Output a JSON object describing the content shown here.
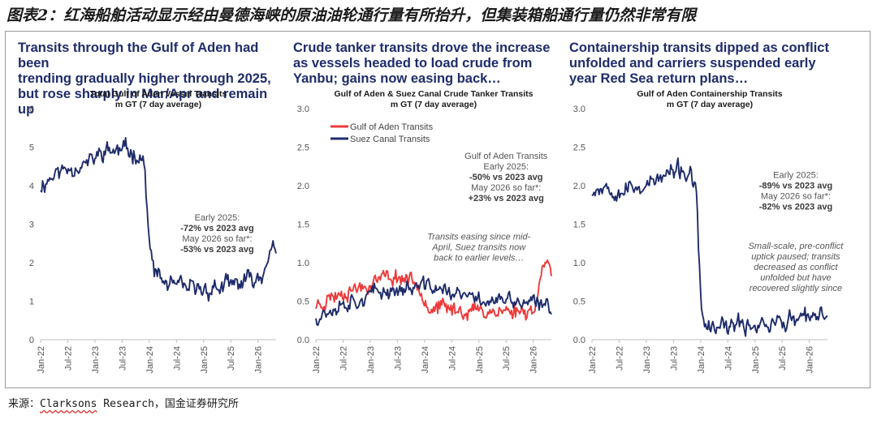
{
  "page": {
    "figure_title": "图表2：红海船舶活动显示经由曼德海峡的原油油轮通行量有所抬升，但集装箱船通行量仍然非常有限",
    "source_prefix": "来源：",
    "source_brand": "Clarksons",
    "source_rest": " Research，国金证券研究所"
  },
  "panels": [
    {
      "headline_lines": [
        "Transits through the Gulf of Aden had been",
        "trending gradually higher through 2025,",
        "but rose sharply in Mar/Apr and remain up"
      ]
    },
    {
      "headline_lines": [
        "Crude tanker transits drove the increase",
        "as vessels headed to load crude from",
        "Yanbu; gains now easing back…"
      ]
    },
    {
      "headline_lines": [
        "Containership transits dipped as conflict",
        "unfolded and carriers suspended early",
        "year Red Sea return plans…"
      ]
    }
  ],
  "colors": {
    "navy": "#1f2c6b",
    "red": "#ee3b3b",
    "grid": "#d9d9d9",
    "axis": "#bfbfbf",
    "headline": "#1f2c6b"
  },
  "chart_data": [
    {
      "type": "line",
      "title": "Total Gulf of Aden Vessel Transits",
      "subtitle": "m GT (7 day average)",
      "xlabel": "",
      "ylabel": "",
      "x_range": [
        "2022-01",
        "2026-05"
      ],
      "ylim": [
        0,
        6
      ],
      "y_ticks": [
        0,
        1,
        2,
        3,
        4,
        5,
        6
      ],
      "y_tick_labels": [
        "0",
        "1",
        "2",
        "3",
        "4",
        "5",
        "6"
      ],
      "x_ticks": [
        "2022-01",
        "2022-07",
        "2023-01",
        "2023-07",
        "2024-01",
        "2024-07",
        "2025-01",
        "2025-07",
        "2026-01"
      ],
      "x_tick_labels": [
        "Jan-22",
        "Jul-22",
        "Jan-23",
        "Jul-23",
        "Jan-24",
        "Jul-24",
        "Jan-25",
        "Jul-25",
        "Jan-26"
      ],
      "grid": false,
      "legend": [],
      "series": [
        {
          "color": "#1f2c6b",
          "noise": 0.2,
          "seed": 11,
          "x": [
            "2022-01",
            "2022-04",
            "2022-08",
            "2022-12",
            "2023-03",
            "2023-06",
            "2023-09",
            "2023-11",
            "2023-12",
            "2024-01",
            "2024-02",
            "2024-04",
            "2024-07",
            "2024-10",
            "2025-01",
            "2025-04",
            "2025-07",
            "2025-10",
            "2026-01",
            "2026-02",
            "2026-03",
            "2026-04",
            "2026-05"
          ],
          "y": [
            4.0,
            4.3,
            4.5,
            4.6,
            4.9,
            4.9,
            4.9,
            4.8,
            4.5,
            2.4,
            1.8,
            1.5,
            1.35,
            1.3,
            1.3,
            1.35,
            1.4,
            1.5,
            1.6,
            1.7,
            2.2,
            2.3,
            2.2
          ]
        }
      ],
      "annotations": [
        {
          "lines": [
            {
              "t": "Early 2025:",
              "s": "n"
            },
            {
              "t": "-72% vs 2023 avg",
              "s": "b"
            },
            {
              "t": "May 2026 so far*:",
              "s": "n"
            },
            {
              "t": "-53% vs 2023 avg",
              "s": "b"
            }
          ],
          "at": [
            "2025-04",
            3.1
          ]
        }
      ]
    },
    {
      "type": "line",
      "title": "Gulf of Aden & Suez Canal Crude Tanker Transits",
      "subtitle": "m GT (7 day average)",
      "xlabel": "",
      "ylabel": "",
      "x_range": [
        "2022-01",
        "2026-05"
      ],
      "ylim": [
        0,
        3
      ],
      "y_ticks": [
        0,
        0.5,
        1,
        1.5,
        2,
        2.5,
        3
      ],
      "y_tick_labels": [
        "0.0",
        "0.5",
        "1.0",
        "1.5",
        "2.0",
        "2.5",
        "3.0"
      ],
      "x_ticks": [
        "2022-01",
        "2022-07",
        "2023-01",
        "2023-07",
        "2024-01",
        "2024-07",
        "2025-01",
        "2025-07",
        "2026-01"
      ],
      "x_tick_labels": [
        "Jan-22",
        "Jul-22",
        "Jan-23",
        "Jul-23",
        "Jan-24",
        "Jul-24",
        "Jan-25",
        "Jul-25",
        "Jan-26"
      ],
      "grid": false,
      "legend": [
        "Gulf of Aden Transits",
        "Suez Canal Transits"
      ],
      "series": [
        {
          "name": "Gulf of Aden Transits",
          "color": "#ee3b3b",
          "noise": 0.09,
          "seed": 23,
          "x": [
            "2022-01",
            "2022-04",
            "2022-08",
            "2022-12",
            "2023-03",
            "2023-06",
            "2023-09",
            "2023-12",
            "2024-01",
            "2024-02",
            "2024-06",
            "2024-10",
            "2025-02",
            "2025-06",
            "2025-10",
            "2026-01",
            "2026-02",
            "2026-03",
            "2026-04",
            "2026-05"
          ],
          "y": [
            0.45,
            0.55,
            0.65,
            0.7,
            0.8,
            0.82,
            0.8,
            0.72,
            0.55,
            0.42,
            0.4,
            0.38,
            0.38,
            0.37,
            0.37,
            0.4,
            0.5,
            1.05,
            1.1,
            0.85
          ]
        },
        {
          "name": "Suez Canal Transits",
          "color": "#1f2c6b",
          "noise": 0.09,
          "seed": 37,
          "x": [
            "2022-01",
            "2022-04",
            "2022-08",
            "2022-12",
            "2023-03",
            "2023-06",
            "2023-09",
            "2023-12",
            "2024-02",
            "2024-06",
            "2024-10",
            "2025-02",
            "2025-06",
            "2025-10",
            "2026-01",
            "2026-03",
            "2026-04",
            "2026-05"
          ],
          "y": [
            0.3,
            0.4,
            0.5,
            0.55,
            0.62,
            0.65,
            0.66,
            0.68,
            0.7,
            0.62,
            0.55,
            0.52,
            0.5,
            0.48,
            0.46,
            0.42,
            0.45,
            0.42
          ]
        }
      ],
      "annotations": [
        {
          "lines": [
            {
              "t": "Gulf of Aden Transits",
              "s": "n"
            },
            {
              "t": "Early 2025:",
              "s": "n"
            },
            {
              "t": "-50% vs 2023 avg",
              "s": "b"
            },
            {
              "t": "May 2026 so far*:",
              "s": "n"
            },
            {
              "t": "+23% vs 2023 avg",
              "s": "b"
            }
          ],
          "at": [
            "2025-07",
            2.35
          ]
        },
        {
          "lines": [
            {
              "t": "Transits easing since mid-",
              "s": "i"
            },
            {
              "t": "April, Suez transits now",
              "s": "i"
            },
            {
              "t": "back to earlier levels…",
              "s": "i"
            }
          ],
          "at": [
            "2025-01",
            1.3
          ]
        }
      ]
    },
    {
      "type": "line",
      "title": "Gulf of Aden Containership Transits",
      "subtitle": "m GT (7 day average)",
      "xlabel": "",
      "ylabel": "",
      "x_range": [
        "2022-01",
        "2026-05"
      ],
      "ylim": [
        0,
        3
      ],
      "y_ticks": [
        0,
        0.5,
        1,
        1.5,
        2,
        2.5,
        3
      ],
      "y_tick_labels": [
        "0.0",
        "0.5",
        "1.0",
        "1.5",
        "2.0",
        "2.5",
        "3.0"
      ],
      "x_ticks": [
        "2022-01",
        "2022-07",
        "2023-01",
        "2023-07",
        "2024-01",
        "2024-07",
        "2025-01",
        "2025-07",
        "2026-01"
      ],
      "x_tick_labels": [
        "Jan-22",
        "Jul-22",
        "Jan-23",
        "Jul-23",
        "Jan-24",
        "Jul-24",
        "Jan-25",
        "Jul-25",
        "Jan-26"
      ],
      "grid": false,
      "legend": [],
      "series": [
        {
          "color": "#1f2c6b",
          "noise": 0.1,
          "seed": 53,
          "x": [
            "2022-01",
            "2022-04",
            "2022-08",
            "2022-12",
            "2023-03",
            "2023-06",
            "2023-09",
            "2023-11",
            "2023-12",
            "2024-01",
            "2024-02",
            "2024-04",
            "2024-08",
            "2024-12",
            "2025-04",
            "2025-08",
            "2025-12",
            "2026-03",
            "2026-05"
          ],
          "y": [
            1.95,
            2.0,
            1.95,
            2.0,
            2.05,
            2.15,
            2.2,
            2.1,
            1.9,
            0.5,
            0.15,
            0.14,
            0.17,
            0.2,
            0.22,
            0.24,
            0.26,
            0.28,
            0.35
          ]
        }
      ],
      "annotations": [
        {
          "lines": [
            {
              "t": "Early 2025:",
              "s": "n"
            },
            {
              "t": "-89% vs 2023 avg",
              "s": "b"
            },
            {
              "t": "May 2026 so far*:",
              "s": "n"
            },
            {
              "t": "-82% vs 2023 avg",
              "s": "b"
            }
          ],
          "at": [
            "2025-10",
            2.1
          ]
        },
        {
          "lines": [
            {
              "t": "Small-scale, pre-conflict",
              "s": "i"
            },
            {
              "t": "uptick paused; transits",
              "s": "i"
            },
            {
              "t": "decreased as conflict",
              "s": "i"
            },
            {
              "t": "unfolded but have",
              "s": "i"
            },
            {
              "t": "recovered slightly since",
              "s": "i"
            }
          ],
          "at": [
            "2025-10",
            1.18
          ]
        }
      ]
    }
  ]
}
